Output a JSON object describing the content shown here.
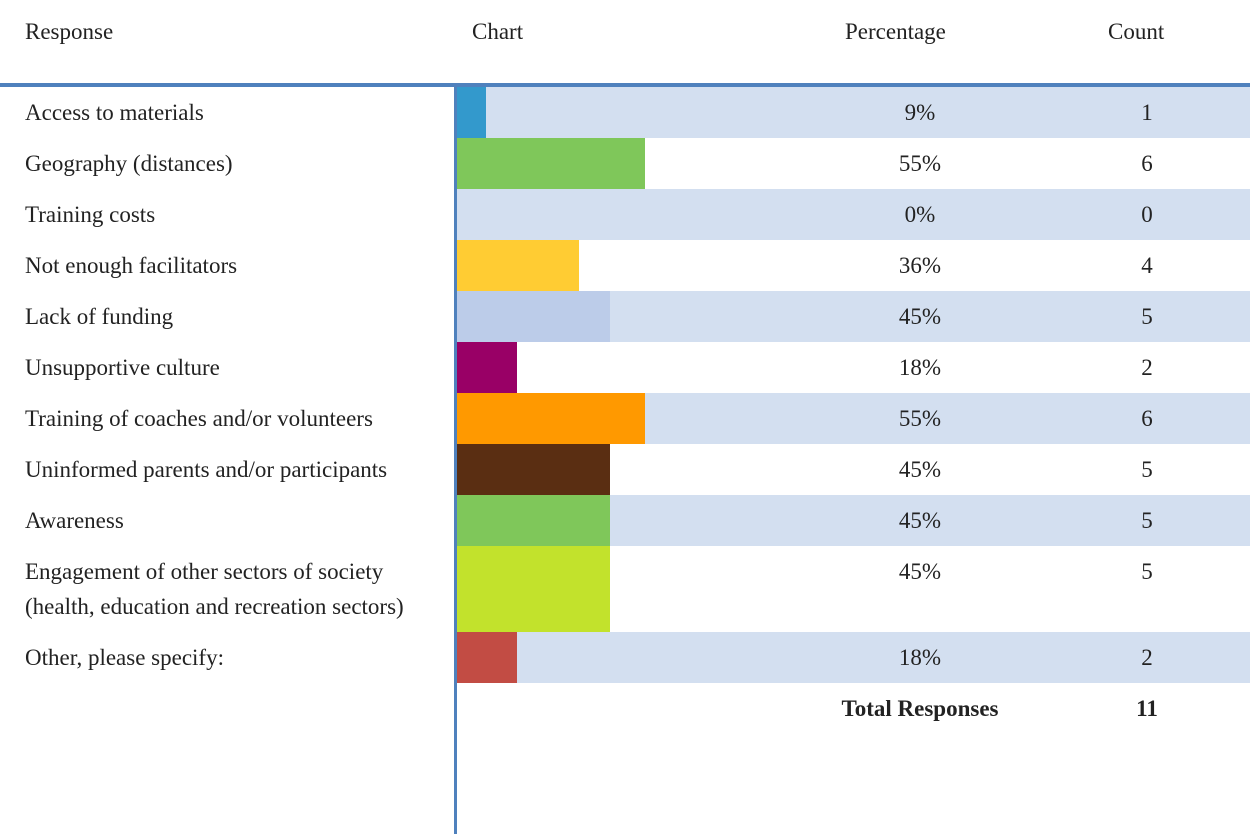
{
  "chart_data": {
    "type": "bar",
    "headers": [
      "Response",
      "Chart",
      "Percentage",
      "Count"
    ],
    "categories": [
      "Access to materials",
      "Geography (distances)",
      "Training costs",
      "Not enough facilitators",
      "Lack of funding",
      "Unsupportive culture",
      "Training of coaches and/or volunteers",
      "Uninformed parents and/or participants",
      "Awareness",
      "Engagement of other sectors of society (health, education and recreation sectors)",
      "Other, please specify:"
    ],
    "values": [
      9,
      55,
      0,
      36,
      45,
      18,
      55,
      45,
      45,
      45,
      18
    ],
    "value_labels": [
      "9%",
      "55%",
      "0%",
      "36%",
      "45%",
      "18%",
      "55%",
      "45%",
      "45%",
      "45%",
      "18%"
    ],
    "counts": [
      1,
      6,
      0,
      4,
      5,
      2,
      6,
      5,
      5,
      5,
      2
    ],
    "colors": [
      "#3399cc",
      "#7fc75a",
      null,
      "#ffcc33",
      "#bccce9",
      "#990066",
      "#ff9900",
      "#5a2e12",
      "#7fc75a",
      "#c2e22c",
      "#c24c44"
    ],
    "total_label": "Total Responses",
    "total": 11
  }
}
